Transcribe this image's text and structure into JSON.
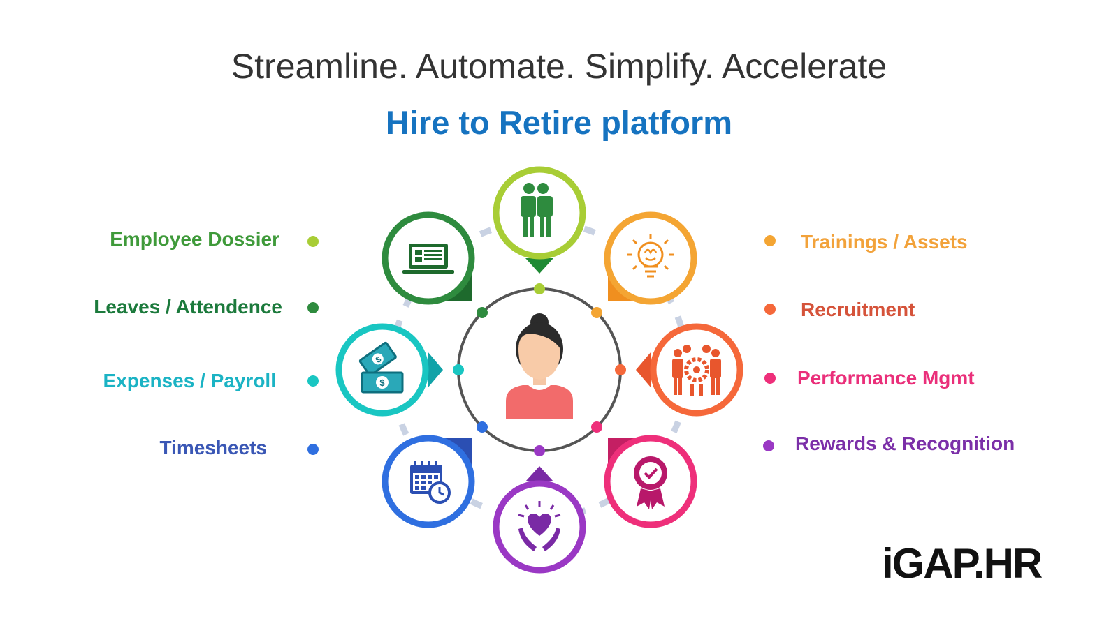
{
  "header": {
    "headline": "Streamline. Automate. Simplify. Accelerate",
    "subtitle": "Hire to Retire platform"
  },
  "left_items": [
    {
      "label": "Employee Dossier",
      "color": "#3f9a3a",
      "dot_color": "#a8cd35"
    },
    {
      "label": "Leaves / Attendence",
      "color": "#1c7a3c",
      "dot_color": "#2e8b3e"
    },
    {
      "label": "Expenses / Payroll",
      "color": "#1bb3c4",
      "dot_color": "#19c6c2"
    },
    {
      "label": "Timesheets",
      "color": "#3a57b5",
      "dot_color": "#2f6fe0"
    }
  ],
  "right_items": [
    {
      "label": "Trainings / Assets",
      "color": "#f2a23a",
      "dot_color": "#f4a533"
    },
    {
      "label": "Recruitment",
      "color": "#d5533a",
      "dot_color": "#f5683a"
    },
    {
      "label": "Performance Mgmt",
      "color": "#ea2f7a",
      "dot_color": "#ee2f7a"
    },
    {
      "label": "Rewards & Recognition",
      "color": "#7b2fa8",
      "dot_color": "#9a38c4"
    }
  ],
  "nodes": [
    {
      "name": "team-icon",
      "color": "#a8cd35"
    },
    {
      "name": "idea-brain-icon",
      "color": "#f4a533"
    },
    {
      "name": "team-settings-icon",
      "color": "#f5683a"
    },
    {
      "name": "award-badge-icon",
      "color": "#ee2f7a"
    },
    {
      "name": "heart-hands-icon",
      "color": "#9a38c4"
    },
    {
      "name": "calendar-clock-icon",
      "color": "#2f6fe0"
    },
    {
      "name": "money-icon",
      "color": "#19c6c2"
    },
    {
      "name": "laptop-profile-icon",
      "color": "#2e8b3e"
    }
  ],
  "center": {
    "icon": "woman-avatar-icon"
  },
  "logo": {
    "text": "iGAP.HR"
  }
}
